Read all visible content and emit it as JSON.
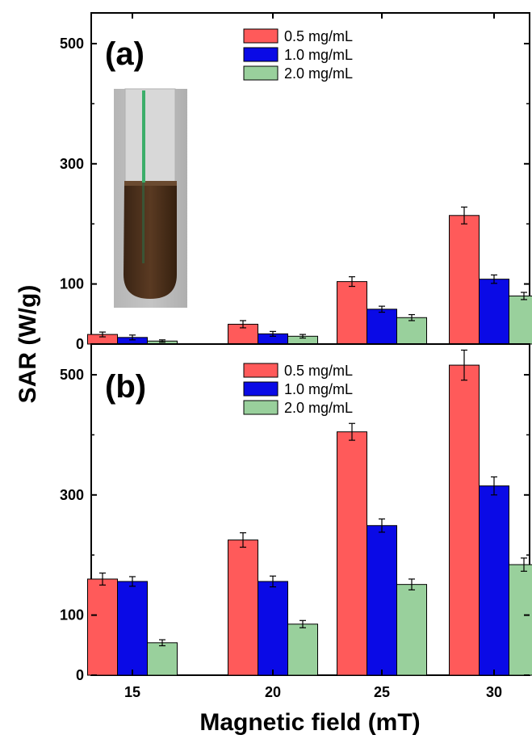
{
  "figure": {
    "xlabel": "Magnetic field (mT)",
    "ylabel": "SAR (W/g)",
    "colors": {
      "series_0": "#ff5a5a",
      "series_1": "#0a0ae6",
      "series_2": "#99d09c",
      "error_bar": "#000000",
      "axis": "#000000"
    }
  },
  "chart_data": [
    {
      "type": "bar",
      "panel_label": "(a)",
      "title": "",
      "xlabel": "Magnetic field (mT)",
      "ylabel": "SAR (W/g)",
      "categories": [
        "15",
        "20",
        "25",
        "30"
      ],
      "ylim": [
        0,
        560
      ],
      "yticks": [
        0,
        100,
        300,
        500
      ],
      "grid": false,
      "legend_position": "top-right",
      "inset_image": "test-tube-with-brown-magnetic-fluid",
      "series": [
        {
          "name": "0.5 mg/mL",
          "values": [
            16,
            33,
            104,
            214
          ],
          "errors": [
            4,
            6,
            8,
            14
          ]
        },
        {
          "name": "1.0 mg/mL",
          "values": [
            11,
            17,
            58,
            108
          ],
          "errors": [
            4,
            4,
            5,
            7
          ]
        },
        {
          "name": "2.0 mg/mL",
          "values": [
            5,
            13,
            44,
            80
          ],
          "errors": [
            2,
            3,
            5,
            6
          ]
        }
      ]
    },
    {
      "type": "bar",
      "panel_label": "(b)",
      "title": "",
      "xlabel": "Magnetic field (mT)",
      "ylabel": "SAR (W/g)",
      "categories": [
        "15",
        "20",
        "25",
        "30"
      ],
      "ylim": [
        0,
        560
      ],
      "yticks": [
        0,
        100,
        300,
        500
      ],
      "grid": false,
      "legend_position": "top-right",
      "series": [
        {
          "name": "0.5 mg/mL",
          "values": [
            160,
            225,
            405,
            516
          ],
          "errors": [
            10,
            12,
            14,
            25
          ]
        },
        {
          "name": "1.0 mg/mL",
          "values": [
            156,
            156,
            249,
            315
          ],
          "errors": [
            8,
            9,
            11,
            15
          ]
        },
        {
          "name": "2.0 mg/mL",
          "values": [
            54,
            85,
            151,
            184
          ],
          "errors": [
            5,
            6,
            9,
            11
          ]
        }
      ]
    }
  ]
}
